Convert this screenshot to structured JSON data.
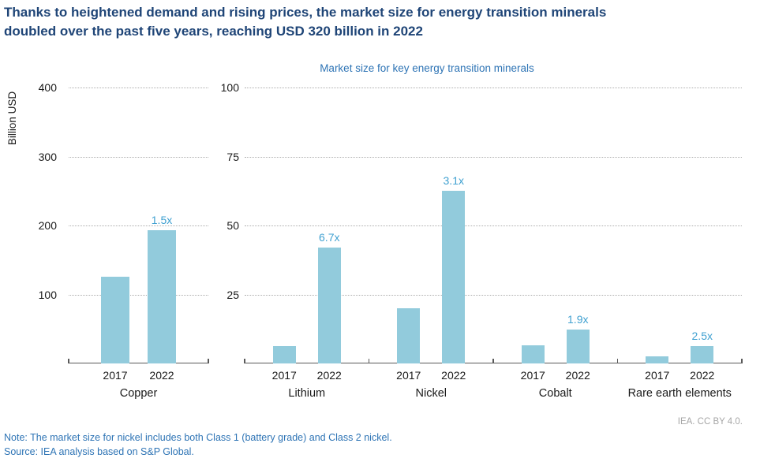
{
  "title_line1": "Thanks to heightened demand and rising prices, the market size for energy transition minerals",
  "title_line2": "doubled over the past five years, reaching USD 320 billion in 2022",
  "subtitle": "Market size for key energy transition minerals",
  "y_axis_label": "Billion USD",
  "attribution": "IEA. CC BY 4.0.",
  "note": "Note: The market size for nickel includes both Class 1 (battery grade) and Class 2 nickel.",
  "source": "Source: IEA analysis based on S&P Global.",
  "colors": {
    "title_navy": "#1F4577",
    "link_blue": "#2E74B5",
    "bar_blue": "#92CBDC",
    "annotation_blue": "#41A1D1",
    "attribution_gray": "#A6A6A6",
    "axis_text": "#1A1A1A",
    "gridline_gray": "#ADADAD",
    "baseline_gray": "#595959"
  },
  "chart_data": {
    "type": "bar",
    "title": "Market size for key energy transition minerals",
    "ylabel": "Billion USD",
    "unit": "Billion USD",
    "grid": "horizontal dotted",
    "legend": "none",
    "panels": [
      {
        "ylabel": "Billion USD",
        "ylim": [
          0,
          400
        ],
        "yticks": [
          100,
          200,
          300,
          400
        ],
        "groups": [
          {
            "label": "Copper",
            "categories": [
              "2017",
              "2022"
            ],
            "values": [
              126,
              193
            ],
            "multiplier": "1.5x"
          }
        ]
      },
      {
        "ylabel": "",
        "ylim": [
          0,
          100
        ],
        "yticks": [
          25,
          50,
          75,
          100
        ],
        "groups": [
          {
            "label": "Lithium",
            "categories": [
              "2017",
              "2022"
            ],
            "values": [
              6.3,
              42
            ],
            "multiplier": "6.7x"
          },
          {
            "label": "Nickel",
            "categories": [
              "2017",
              "2022"
            ],
            "values": [
              20,
              62.5
            ],
            "multiplier": "3.1x"
          },
          {
            "label": "Cobalt",
            "categories": [
              "2017",
              "2022"
            ],
            "values": [
              6.5,
              12.4
            ],
            "multiplier": "1.9x"
          },
          {
            "label": "Rare earth elements",
            "categories": [
              "2017",
              "2022"
            ],
            "values": [
              2.5,
              6.2
            ],
            "multiplier": "2.5x"
          }
        ]
      }
    ]
  }
}
